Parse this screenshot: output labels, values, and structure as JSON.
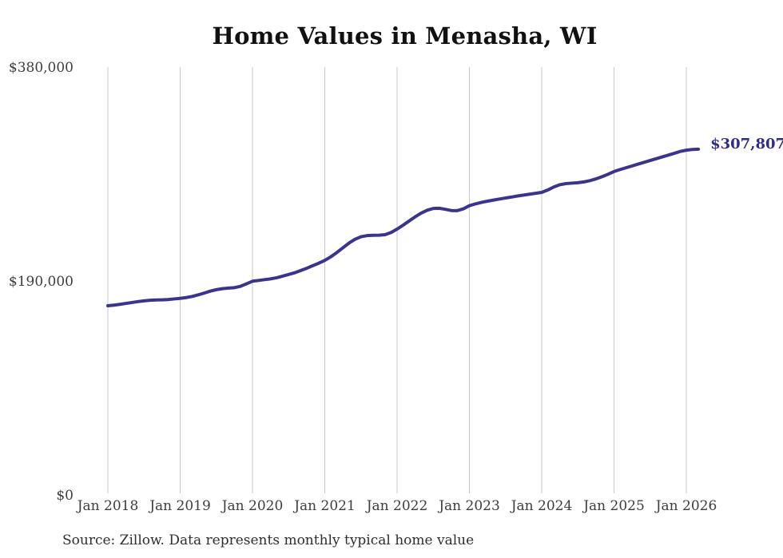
{
  "title": "Home Values in Menasha, WI",
  "final_value_label": "$307,807",
  "source_note": "Source: Zillow. Data represents monthly typical home value",
  "colors": {
    "line": "#3a3391",
    "final_label_text": "#2f2c8d",
    "gridline": "#c9c9c9",
    "axis_text": "#3d3d3d",
    "title_text": "#111111",
    "source_text": "#2e2e2e",
    "background": "#ffffff"
  },
  "chart_data": {
    "type": "line",
    "title": "Home Values in Menasha, WI",
    "frequency": "monthly",
    "x_start_month": "2018-01",
    "x_end_month": "2026-03",
    "x_tick_labels": [
      "Jan 2018",
      "Jan 2019",
      "Jan 2020",
      "Jan 2021",
      "Jan 2022",
      "Jan 2023",
      "Jan 2024",
      "Jan 2025",
      "Jan 2026"
    ],
    "y_tick_labels": [
      "$0",
      "$190,000",
      "$380,000"
    ],
    "y_tick_values": [
      0,
      190000,
      380000
    ],
    "ylim": [
      0,
      380000
    ],
    "grid": "vertical-only",
    "legend_position": "none",
    "series": [
      {
        "name": "Typical home value",
        "values": [
          168700,
          169300,
          170000,
          170800,
          171600,
          172400,
          173100,
          173600,
          173900,
          174000,
          174200,
          174800,
          175300,
          176000,
          177000,
          178400,
          180000,
          181700,
          183000,
          183900,
          184400,
          184800,
          186000,
          188200,
          190500,
          191200,
          191900,
          192600,
          193600,
          195000,
          196500,
          198000,
          200000,
          202000,
          204300,
          206500,
          209000,
          212200,
          216000,
          220200,
          224300,
          227700,
          230000,
          231000,
          231300,
          231400,
          231800,
          233800,
          236800,
          240300,
          244000,
          247700,
          251000,
          253600,
          255100,
          255300,
          254400,
          253300,
          253200,
          254800,
          257600,
          259200,
          260500,
          261600,
          262600,
          263500,
          264400,
          265300,
          266200,
          267000,
          267800,
          268600,
          269400,
          271500,
          274200,
          276200,
          277200,
          277600,
          278000,
          278700,
          279800,
          281400,
          283300,
          285500,
          287900,
          289700,
          291300,
          292900,
          294500,
          296100,
          297700,
          299300,
          300900,
          302500,
          304100,
          305800,
          306900,
          307500,
          307807
        ]
      }
    ],
    "annotations": [
      {
        "text": "$307,807",
        "value": 307807,
        "position": "line-end"
      }
    ]
  }
}
